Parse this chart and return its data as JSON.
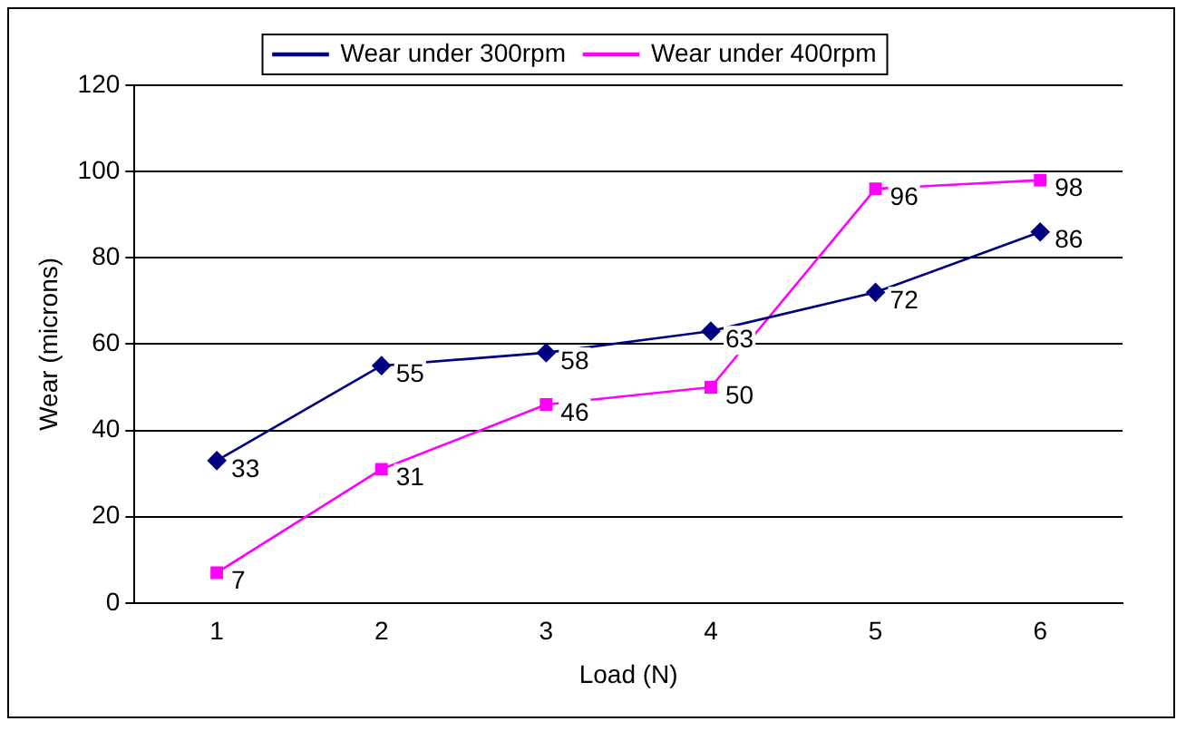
{
  "chart_data": {
    "type": "line",
    "xlabel": "Load (N)",
    "ylabel": "Wear (microns)",
    "categories": [
      "1",
      "2",
      "3",
      "4",
      "5",
      "6"
    ],
    "series": [
      {
        "name": "Wear under 300rpm",
        "color": "#000080",
        "marker": "diamond",
        "values": [
          33,
          55,
          58,
          63,
          72,
          86
        ]
      },
      {
        "name": "Wear under 400rpm",
        "color": "#ff00ff",
        "marker": "square",
        "values": [
          7,
          31,
          46,
          50,
          96,
          98
        ]
      }
    ],
    "ylim": [
      0,
      120
    ],
    "yticks": [
      0,
      20,
      40,
      60,
      80,
      100,
      120
    ],
    "grid": "y",
    "legend": "top",
    "data_labels": true
  }
}
